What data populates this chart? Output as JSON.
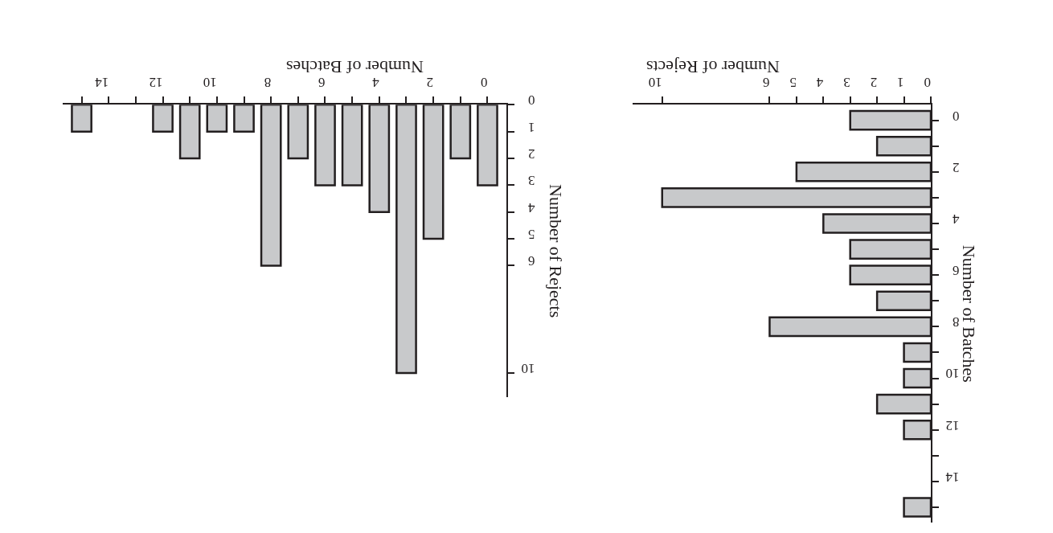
{
  "chart_data": [
    {
      "type": "bar",
      "xlabel": "Number of Batches",
      "ylabel": "Number of Rejects",
      "categories": [
        null,
        "14",
        null,
        "12",
        null,
        "10",
        null,
        "8",
        null,
        "6",
        null,
        "4",
        null,
        "2",
        null,
        "0"
      ],
      "values": [
        1,
        0,
        0,
        1,
        2,
        1,
        1,
        6,
        2,
        3,
        3,
        4,
        10,
        5,
        2,
        3
      ],
      "color": "#c8c9cb",
      "ylim": [
        10.9,
        0
      ],
      "yticks": [
        0,
        1,
        2,
        3,
        4,
        5,
        6,
        10
      ]
    },
    {
      "type": "bar",
      "orientation": "horizontal",
      "xlabel": "Number of Rejects",
      "ylabel": "Number of Batches",
      "categories": [
        "0",
        null,
        "2",
        null,
        "4",
        null,
        "6",
        null,
        "8",
        null,
        "10",
        null,
        "12",
        null,
        "14",
        null
      ],
      "values": [
        3,
        2,
        5,
        10,
        4,
        3,
        3,
        2,
        6,
        1,
        1,
        2,
        1,
        0,
        0,
        1
      ],
      "color": "#c8c9cb",
      "xlim": [
        11.1,
        0
      ],
      "xticks": [
        0,
        1,
        2,
        3,
        4,
        5,
        6,
        10
      ]
    }
  ]
}
